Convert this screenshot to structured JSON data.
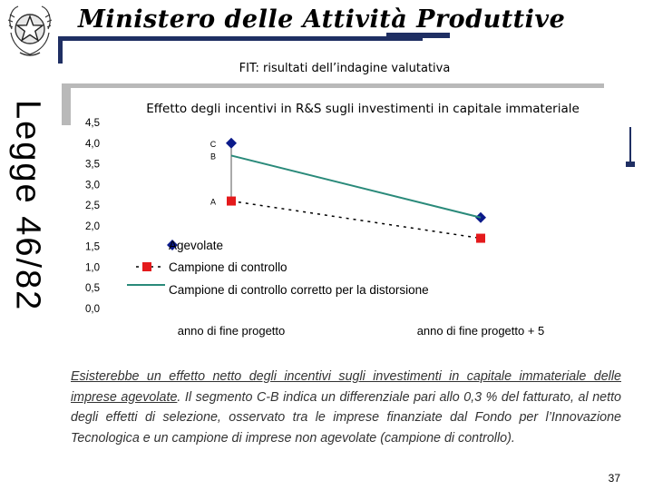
{
  "header": {
    "ministry": "Ministero delle Attività Produttive",
    "side_title": "Legge 46/82",
    "subtitle": "FIT: risultati dell’indagine valutativa"
  },
  "colors": {
    "navy": "#1f2f63",
    "agevolate": "#0b1a8a",
    "controllo": "#e41a1c",
    "corretto": "#2a8a7a"
  },
  "chart_data": {
    "type": "line",
    "title": "Effetto degli incentivi in R&S sugli investimenti in capitale immateriale",
    "categories": [
      "anno di fine progetto",
      "anno di fine progetto + 5"
    ],
    "ylim": [
      0,
      4.5
    ],
    "yticks": [
      "0,0",
      "0,5",
      "1,0",
      "1,5",
      "2,0",
      "2,5",
      "3,0",
      "3,5",
      "4,0",
      "4,5"
    ],
    "series": [
      {
        "name": "Agevolate",
        "values": [
          4.0,
          2.2
        ],
        "marker": "diamond",
        "line": "none",
        "color": "#0b1a8a"
      },
      {
        "name": "Campione di controllo",
        "values": [
          2.6,
          1.7
        ],
        "marker": "square",
        "line": "dotted",
        "color": "#e41a1c"
      },
      {
        "name": "Campione di controllo corretto per la distorsione",
        "values": [
          3.7,
          2.2
        ],
        "marker": "none",
        "line": "solid",
        "color": "#2a8a7a"
      }
    ],
    "point_labels": [
      {
        "text": "C",
        "y": 4.0
      },
      {
        "text": "B",
        "y": 3.7
      },
      {
        "text": "A",
        "y": 2.6
      }
    ],
    "legend_position": "lower-left"
  },
  "text": {
    "underlined": "Esisterebbe un effetto netto degli incentivi sugli investimenti in capitale immateriale delle imprese agevolate",
    "rest": ". Il segmento C-B indica un differenziale pari allo 0,3 % del fatturato, al netto degli effetti di selezione, osservato tra le imprese finanziate dal Fondo per l’Innovazione Tecnologica e un campione di imprese non agevolate (campione di controllo)."
  },
  "page_number": "37"
}
